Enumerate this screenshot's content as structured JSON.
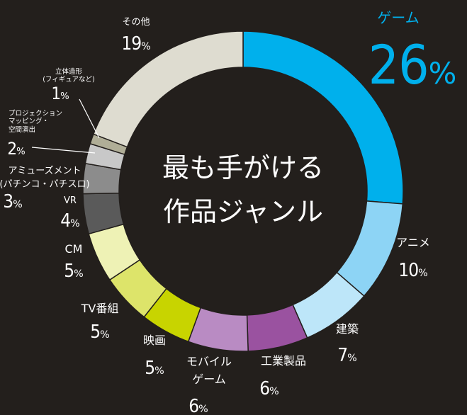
{
  "chart_data": {
    "type": "donut",
    "title": [
      "最も手がける",
      "作品ジャンル"
    ],
    "unit": "%",
    "categories": [
      [
        "ゲーム"
      ],
      [
        "アニメ"
      ],
      [
        "建築"
      ],
      [
        "工業製品"
      ],
      [
        "モバイル",
        "ゲーム"
      ],
      [
        "映画"
      ],
      [
        "TV番組"
      ],
      [
        "CM"
      ],
      [
        "VR"
      ],
      [
        "アミューズメント",
        "(パチンコ・パチスロ)"
      ],
      [
        "プロジェクション",
        "マッピング・",
        "空間演出"
      ],
      [
        "立体造形",
        "(フィギュアなど)"
      ],
      [
        "その他"
      ]
    ],
    "values": [
      26,
      10,
      7,
      6,
      6,
      5,
      5,
      5,
      4,
      3,
      2,
      1,
      19
    ],
    "colors": [
      "#00b0ec",
      "#8dd4f5",
      "#bde6f9",
      "#9a52a0",
      "#b98bc3",
      "#c8d400",
      "#dde46a",
      "#eef2b5",
      "#5a5a5a",
      "#8c8c8c",
      "#c8c8c8",
      "#b0ae97",
      "#dedcd0"
    ]
  }
}
